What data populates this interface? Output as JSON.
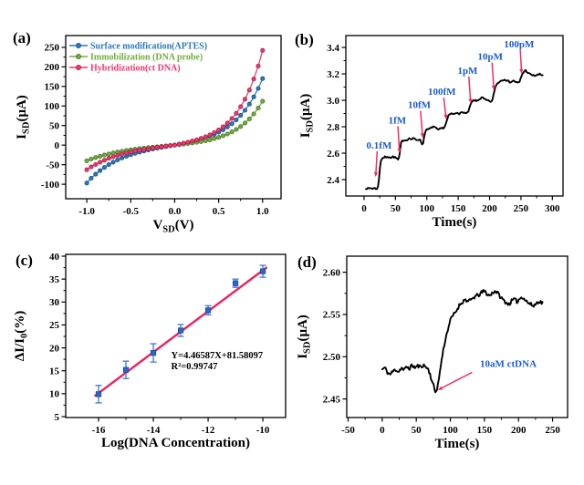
{
  "figure_background": "#ffffff",
  "chart_data": [
    {
      "panel_label": "(a)",
      "type": "line",
      "xlabel": {
        "pre": "V",
        "sub": "SD",
        "post": "(V)"
      },
      "ylabel": {
        "pre": "I",
        "sub": "SD",
        "post": "(μA)"
      },
      "xlim": [
        -1.24,
        1.21
      ],
      "ylim": [
        -137,
        280
      ],
      "xticks": [
        -1.0,
        -0.5,
        0.0,
        0.5,
        1.0
      ],
      "xtick_labels": [
        "-1.0",
        "-0.5",
        "0.0",
        "0.5",
        "1.0"
      ],
      "yticks": [
        -100,
        -50,
        0,
        50,
        100,
        150,
        200,
        250
      ],
      "ytick_labels": [
        "-100",
        "-50",
        "0",
        "50",
        "100",
        "150",
        "200",
        "250"
      ],
      "x_start": -1.0,
      "x_step": 0.05,
      "legend_position": "top-left",
      "series": [
        {
          "name": "Surface modification(APTES)",
          "color": "#2878BE",
          "values": [
            -97,
            -84.9,
            -74.4,
            -65.2,
            -57,
            -49.8,
            -43.5,
            -37.9,
            -32.9,
            -28.5,
            -24.6,
            -21.1,
            -17.9,
            -15.1,
            -12.5,
            -10.1,
            -7.9,
            -5.8,
            -3.8,
            -1.9,
            0,
            2.2,
            4.5,
            6.9,
            9.5,
            12.3,
            15.5,
            19,
            23,
            27.6,
            33,
            39.2,
            46.4,
            54.6,
            64.5,
            75.9,
            89.2,
            104.9,
            123.3,
            144.8,
            170
          ]
        },
        {
          "name": "Immobilization (DNA probe)",
          "color": "#6FAD3D",
          "values": [
            -40,
            -35.7,
            -31.8,
            -28.4,
            -25.3,
            -22.5,
            -20,
            -17.7,
            -15.6,
            -13.7,
            -12,
            -10.4,
            -9,
            -7.6,
            -6.4,
            -5.2,
            -4.1,
            -3,
            -2,
            -1,
            0,
            1.3,
            2.6,
            4,
            5.5,
            7.2,
            9,
            11.2,
            13.6,
            16.5,
            19.8,
            23.7,
            28.3,
            33.7,
            40.1,
            47.6,
            56.5,
            67.1,
            79.6,
            94.5,
            112
          ]
        },
        {
          "name": "Hybridization(ct DNA)",
          "color": "#F2356D",
          "values": [
            -63,
            -55.7,
            -49.3,
            -43.6,
            -38.6,
            -33.9,
            -29.8,
            -26.2,
            -23,
            -20,
            -17.4,
            -15,
            -12.8,
            -10.9,
            -9,
            -7.3,
            -5.7,
            -4.2,
            -2.8,
            -1.4,
            0,
            2.4,
            4.9,
            7.5,
            10.4,
            13.6,
            17.2,
            21.5,
            26.4,
            32.1,
            38.9,
            46.9,
            56.6,
            67.9,
            81.2,
            98,
            117.5,
            140.8,
            168.9,
            202.2,
            242
          ]
        }
      ],
      "box": {
        "l": 72,
        "t": 39,
        "r": 308,
        "b": 218
      },
      "ylabel_off": 44,
      "xlabel_off": 33
    },
    {
      "panel_label": "(b)",
      "type": "trace",
      "xlabel": {
        "pre": "Time(s)",
        "sub": "",
        "post": ""
      },
      "ylabel": {
        "pre": "I",
        "sub": "SD",
        "post": "(μA)"
      },
      "xlim": [
        -29,
        317
      ],
      "ylim": [
        2.276,
        3.49
      ],
      "xticks": [
        0,
        50,
        100,
        150,
        200,
        250,
        300
      ],
      "xtick_labels": [
        "0",
        "50",
        "100",
        "150",
        "200",
        "250",
        "300"
      ],
      "yticks": [
        2.4,
        2.6,
        2.8,
        3.0,
        3.2,
        3.4
      ],
      "ytick_labels": [
        "2.4",
        "2.6",
        "2.8",
        "3.0",
        "3.2",
        "3.4"
      ],
      "trace": {
        "color": "#000000",
        "noise": 0.006,
        "dt": 1.6,
        "seed": 7,
        "keypoints": [
          [
            3,
            2.335
          ],
          [
            7,
            2.331
          ],
          [
            10,
            2.337
          ],
          [
            13,
            2.332
          ],
          [
            16,
            2.336
          ],
          [
            19,
            2.331
          ],
          [
            22,
            2.336
          ],
          [
            24,
            2.41
          ],
          [
            26,
            2.53
          ],
          [
            28,
            2.558
          ],
          [
            31,
            2.566
          ],
          [
            34,
            2.572
          ],
          [
            37,
            2.567
          ],
          [
            40,
            2.575
          ],
          [
            43,
            2.566
          ],
          [
            46,
            2.574
          ],
          [
            49,
            2.568
          ],
          [
            52,
            2.562
          ],
          [
            54,
            2.552
          ],
          [
            55,
            2.54
          ],
          [
            57,
            2.6
          ],
          [
            59,
            2.675
          ],
          [
            61,
            2.695
          ],
          [
            64,
            2.7
          ],
          [
            67,
            2.697
          ],
          [
            70,
            2.707
          ],
          [
            73,
            2.712
          ],
          [
            76,
            2.703
          ],
          [
            79,
            2.713
          ],
          [
            82,
            2.704
          ],
          [
            85,
            2.7
          ],
          [
            88,
            2.706
          ],
          [
            90,
            2.695
          ],
          [
            92,
            2.672
          ],
          [
            94,
            2.666
          ],
          [
            96,
            2.732
          ],
          [
            98,
            2.772
          ],
          [
            101,
            2.778
          ],
          [
            104,
            2.783
          ],
          [
            107,
            2.791
          ],
          [
            110,
            2.803
          ],
          [
            113,
            2.794
          ],
          [
            116,
            2.781
          ],
          [
            119,
            2.776
          ],
          [
            122,
            2.786
          ],
          [
            125,
            2.79
          ],
          [
            128,
            2.796
          ],
          [
            131,
            2.832
          ],
          [
            134,
            2.879
          ],
          [
            137,
            2.894
          ],
          [
            140,
            2.9
          ],
          [
            143,
            2.893
          ],
          [
            146,
            2.902
          ],
          [
            149,
            2.91
          ],
          [
            152,
            2.899
          ],
          [
            155,
            2.905
          ],
          [
            158,
            2.911
          ],
          [
            161,
            2.903
          ],
          [
            164,
            2.899
          ],
          [
            167,
            2.924
          ],
          [
            170,
            2.974
          ],
          [
            173,
            2.994
          ],
          [
            176,
            3.001
          ],
          [
            179,
            2.993
          ],
          [
            182,
            3.004
          ],
          [
            185,
            3.012
          ],
          [
            188,
            3.021
          ],
          [
            191,
            3.012
          ],
          [
            194,
            3.001
          ],
          [
            197,
            2.998
          ],
          [
            200,
            2.993
          ],
          [
            203,
            2.99
          ],
          [
            205,
            3.005
          ],
          [
            207,
            3.06
          ],
          [
            209,
            3.1
          ],
          [
            212,
            3.126
          ],
          [
            215,
            3.139
          ],
          [
            218,
            3.148
          ],
          [
            221,
            3.154
          ],
          [
            224,
            3.161
          ],
          [
            227,
            3.151
          ],
          [
            230,
            3.143
          ],
          [
            233,
            3.138
          ],
          [
            236,
            3.143
          ],
          [
            239,
            3.149
          ],
          [
            242,
            3.137
          ],
          [
            245,
            3.131
          ],
          [
            248,
            3.14
          ],
          [
            250,
            3.172
          ],
          [
            252,
            3.198
          ],
          [
            255,
            3.218
          ],
          [
            257,
            3.228
          ],
          [
            259,
            3.219
          ],
          [
            262,
            3.203
          ],
          [
            265,
            3.197
          ],
          [
            268,
            3.191
          ],
          [
            271,
            3.186
          ],
          [
            274,
            3.189
          ],
          [
            277,
            3.193
          ],
          [
            280,
            3.197
          ],
          [
            283,
            3.19
          ],
          [
            285,
            3.193
          ]
        ]
      },
      "ann_color": "#1A5BD2",
      "arrow_color": "#EE2E66",
      "annotations": [
        {
          "text": "0.1fM",
          "tx": 24,
          "ty": 2.66,
          "x1": 21,
          "y1": 2.615,
          "x2": 18.5,
          "y2": 2.42
        },
        {
          "text": "1fM",
          "tx": 53,
          "ty": 2.85,
          "x1": 54,
          "y1": 2.805,
          "x2": 56.5,
          "y2": 2.6
        },
        {
          "text": "10fM",
          "tx": 88,
          "ty": 2.965,
          "x1": 90,
          "y1": 2.92,
          "x2": 93.5,
          "y2": 2.715
        },
        {
          "text": "100fM",
          "tx": 124,
          "ty": 3.065,
          "x1": 127,
          "y1": 3.02,
          "x2": 131,
          "y2": 2.855
        },
        {
          "text": "1pM",
          "tx": 165,
          "ty": 3.225,
          "x1": 167,
          "y1": 3.18,
          "x2": 170,
          "y2": 2.975
        },
        {
          "text": "10pM",
          "tx": 201,
          "ty": 3.33,
          "x1": 204,
          "y1": 3.285,
          "x2": 207,
          "y2": 3.075
        },
        {
          "text": "100pM",
          "tx": 247,
          "ty": 3.425,
          "x1": 249,
          "y1": 3.38,
          "x2": 251,
          "y2": 3.2
        }
      ],
      "box": {
        "l": 59,
        "t": 39,
        "r": 297,
        "b": 215
      },
      "ylabel_off": 40,
      "xlabel_off": 33
    },
    {
      "panel_label": "(c)",
      "type": "scatter-fit",
      "xlabel": {
        "pre": "Log(DNA Concentration)",
        "sub": "",
        "post": ""
      },
      "ylabel": {
        "pre": "ΔI/I",
        "sub": "0",
        "post": "(%)"
      },
      "xlim": [
        -17.2,
        -9.17
      ],
      "ylim": [
        4.8,
        40.4
      ],
      "xticks": [
        -16,
        -14,
        -12,
        -10
      ],
      "xtick_labels": [
        "-16",
        "-14",
        "-12",
        "-10"
      ],
      "yticks": [
        5,
        10,
        15,
        20,
        25,
        30,
        35,
        40
      ],
      "ytick_labels": [
        "5",
        "10",
        "15",
        "20",
        "25",
        "30",
        "35",
        "40"
      ],
      "scatter": {
        "x": [
          -16,
          -15,
          -14,
          -13,
          -12,
          -11,
          -10
        ],
        "y": [
          9.9,
          15.2,
          18.9,
          23.8,
          28.2,
          34.1,
          36.7
        ],
        "err": [
          1.9,
          1.9,
          2.0,
          1.3,
          1.0,
          0.9,
          1.3
        ],
        "color": "#2B65C8",
        "errbar_color": "#4583DC"
      },
      "fit": {
        "slope": 4.46587,
        "intercept": 81.58097,
        "x1": -16.15,
        "x2": -9.85,
        "color": "#EE2060"
      },
      "eq_text": {
        "lines": [
          "Y=4.46587X+81.58097",
          "R²=0.99747"
        ],
        "x": -13.35,
        "y": 17.7,
        "line_step": 2.35
      },
      "box": {
        "l": 72,
        "t": 13,
        "r": 313,
        "b": 192
      },
      "ylabel_off": 46,
      "xlabel_off": 32
    },
    {
      "panel_label": "(d)",
      "type": "trace",
      "xlabel": {
        "pre": "Time(s)",
        "sub": "",
        "post": ""
      },
      "ylabel": {
        "pre": "I",
        "sub": "SD",
        "post": "(μA)"
      },
      "xlim": [
        -52,
        272
      ],
      "ylim": [
        2.428,
        2.619
      ],
      "xticks": [
        -50,
        0,
        50,
        100,
        150,
        200,
        250
      ],
      "xtick_labels": [
        "-50",
        "0",
        "50",
        "100",
        "150",
        "200",
        "250"
      ],
      "yticks": [
        2.45,
        2.5,
        2.55,
        2.6
      ],
      "ytick_labels": [
        "2.45",
        "2.50",
        "2.55",
        "2.60"
      ],
      "trace": {
        "color": "#000000",
        "noise": 0.0022,
        "dt": 1.3,
        "seed": 11,
        "keypoints": [
          [
            0,
            2.485
          ],
          [
            4,
            2.487
          ],
          [
            8,
            2.481
          ],
          [
            12,
            2.479
          ],
          [
            16,
            2.483
          ],
          [
            20,
            2.485
          ],
          [
            24,
            2.482
          ],
          [
            28,
            2.487
          ],
          [
            32,
            2.484
          ],
          [
            36,
            2.488
          ],
          [
            40,
            2.486
          ],
          [
            44,
            2.49
          ],
          [
            48,
            2.487
          ],
          [
            52,
            2.489
          ],
          [
            56,
            2.488
          ],
          [
            60,
            2.49
          ],
          [
            64,
            2.488
          ],
          [
            67,
            2.486
          ],
          [
            70,
            2.48
          ],
          [
            73,
            2.471
          ],
          [
            76,
            2.464
          ],
          [
            78,
            2.458
          ],
          [
            80,
            2.461
          ],
          [
            82,
            2.468
          ],
          [
            84,
            2.478
          ],
          [
            86,
            2.49
          ],
          [
            89,
            2.505
          ],
          [
            92,
            2.518
          ],
          [
            95,
            2.528
          ],
          [
            98,
            2.538
          ],
          [
            101,
            2.545
          ],
          [
            104,
            2.549
          ],
          [
            107,
            2.552
          ],
          [
            110,
            2.556
          ],
          [
            114,
            2.562
          ],
          [
            118,
            2.565
          ],
          [
            122,
            2.568
          ],
          [
            126,
            2.565
          ],
          [
            130,
            2.567
          ],
          [
            134,
            2.57
          ],
          [
            138,
            2.572
          ],
          [
            142,
            2.573
          ],
          [
            146,
            2.576
          ],
          [
            150,
            2.578
          ],
          [
            154,
            2.574
          ],
          [
            158,
            2.572
          ],
          [
            162,
            2.576
          ],
          [
            166,
            2.578
          ],
          [
            170,
            2.575
          ],
          [
            174,
            2.57
          ],
          [
            178,
            2.567
          ],
          [
            182,
            2.564
          ],
          [
            186,
            2.562
          ],
          [
            190,
            2.566
          ],
          [
            194,
            2.568
          ],
          [
            198,
            2.565
          ],
          [
            202,
            2.569
          ],
          [
            206,
            2.571
          ],
          [
            210,
            2.567
          ],
          [
            214,
            2.564
          ],
          [
            218,
            2.562
          ],
          [
            222,
            2.56
          ],
          [
            226,
            2.563
          ],
          [
            230,
            2.566
          ],
          [
            234,
            2.564
          ],
          [
            236,
            2.563
          ]
        ]
      },
      "ann_color": "#1A5BD2",
      "arrow_color": "#EE2E66",
      "annotations": [
        {
          "text": "10aM ctDNA",
          "tx": 185,
          "ty": 2.4915,
          "x1": 132,
          "y1": 2.4815,
          "x2": 81.5,
          "y2": 2.4605
        }
      ],
      "box": {
        "l": 60,
        "t": 15,
        "r": 302,
        "b": 192
      },
      "ylabel_off": 44,
      "xlabel_off": 33
    }
  ]
}
